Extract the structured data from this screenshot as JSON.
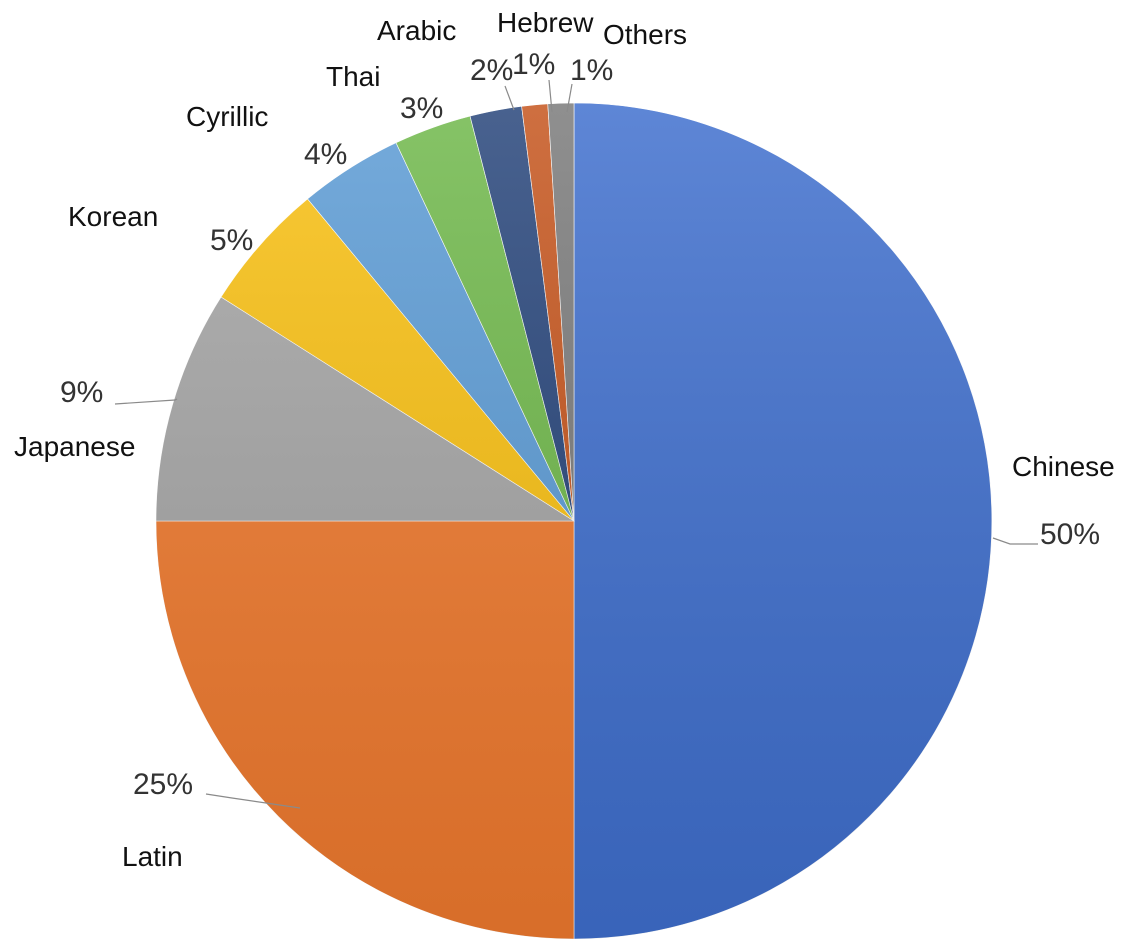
{
  "chart_data": {
    "type": "pie",
    "title": "",
    "slices": [
      {
        "name": "Chinese",
        "value": 50,
        "label": "50%",
        "color": "#3f6fce"
      },
      {
        "name": "Latin",
        "value": 25,
        "label": "25%",
        "color": "#f07a2e"
      },
      {
        "name": "Japanese",
        "value": 9,
        "label": "9%",
        "color": "#a5a5a5"
      },
      {
        "name": "Korean",
        "value": 5,
        "label": "5%",
        "color": "#f9c011"
      },
      {
        "name": "Cyrillic",
        "value": 4,
        "label": "4%",
        "color": "#5b9bd5"
      },
      {
        "name": "Thai",
        "value": 3,
        "label": "3%",
        "color": "#6fb84a"
      },
      {
        "name": "Arabic",
        "value": 2,
        "label": "2%",
        "color": "#26447a"
      },
      {
        "name": "Hebrew",
        "value": 1,
        "label": "1%",
        "color": "#c5541c"
      },
      {
        "name": "Others",
        "value": 1,
        "label": "1%",
        "color": "#7a7a7a"
      }
    ],
    "legend": "none",
    "data_labels": "outside"
  }
}
